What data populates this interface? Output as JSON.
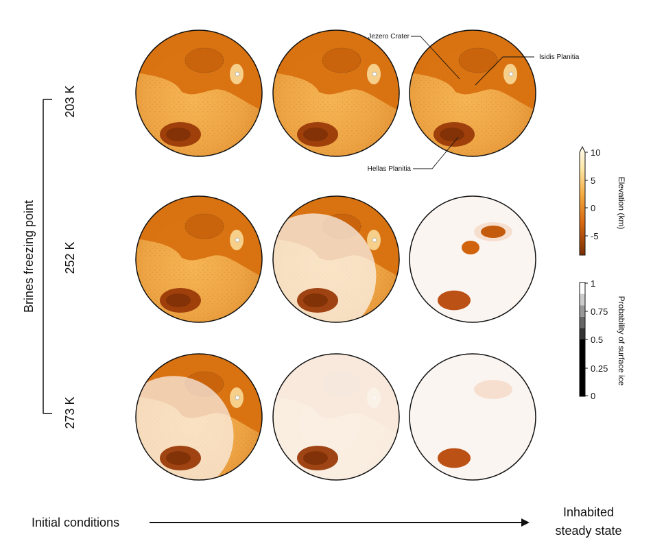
{
  "figure": {
    "y_axis_label": "Brines freezing point",
    "rows": [
      "203 K",
      "252 K",
      "273 K"
    ],
    "x_axis_start": "Initial conditions",
    "x_axis_end_line1": "Inhabited",
    "x_axis_end_line2": "steady state",
    "annotations": {
      "jezero": "Jezero Crater",
      "isidis": "Isidis Planitia",
      "hellas": "Hellas Planitia"
    }
  },
  "elevation_colorbar": {
    "label": "Elevation (km)",
    "ticks": [
      "10",
      "5",
      "0",
      "-5"
    ],
    "range_km": [
      -8,
      10
    ],
    "colors": [
      "#7a2e05",
      "#d8680f",
      "#f4a93c",
      "#fde8a8",
      "#fffbee"
    ]
  },
  "ice_colorbar": {
    "label": "Probability of surface ice",
    "ticks": [
      "1",
      "0.75",
      "0.5",
      "0.25",
      "0"
    ],
    "bands": [
      {
        "from": 0,
        "to": 0.5,
        "color": "#000000"
      },
      {
        "from": 0.5,
        "to": 0.6,
        "color": "#333333"
      },
      {
        "from": 0.6,
        "to": 0.7,
        "color": "#666666"
      },
      {
        "from": 0.7,
        "to": 0.8,
        "color": "#999999"
      },
      {
        "from": 0.8,
        "to": 0.9,
        "color": "#cccccc"
      },
      {
        "from": 0.9,
        "to": 1,
        "color": "#ffffff"
      }
    ]
  }
}
